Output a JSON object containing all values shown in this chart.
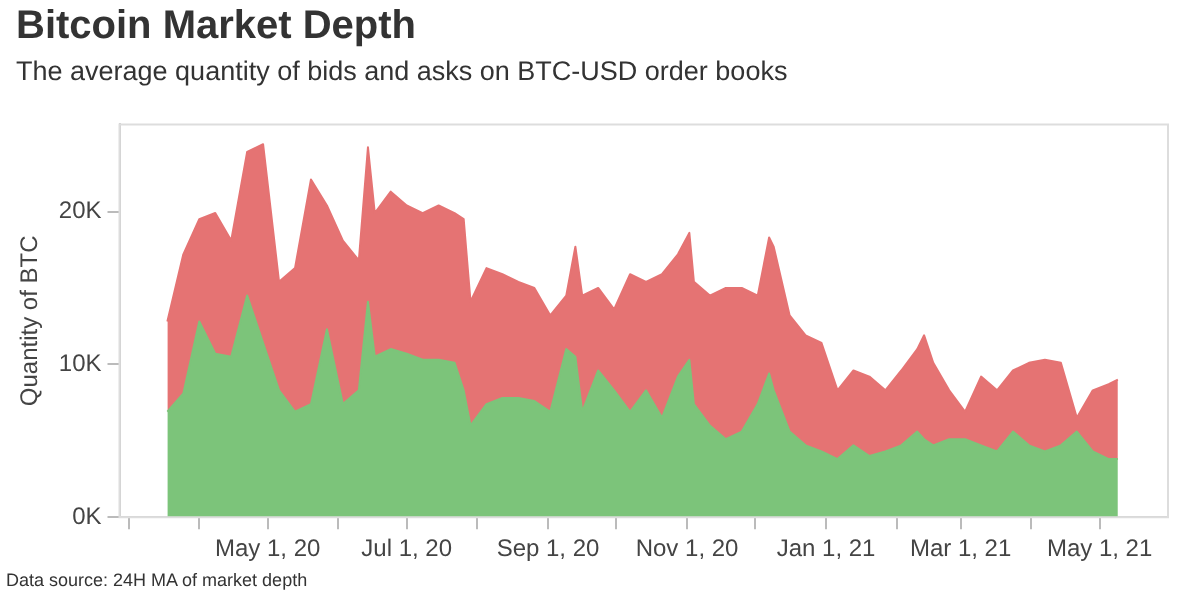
{
  "chart_data": {
    "type": "area",
    "stacked": true,
    "title": "Bitcoin Market Depth",
    "subtitle": "The average quantity of bids and asks on BTC-USD order books",
    "ylabel": "Quantity of BTC",
    "annotations": [
      "Data source: 24H MA of market depth"
    ],
    "x": [
      "2020-03-18",
      "2020-03-25",
      "2020-04-01",
      "2020-04-08",
      "2020-04-15",
      "2020-04-22",
      "2020-04-29",
      "2020-05-06",
      "2020-05-13",
      "2020-05-20",
      "2020-05-27",
      "2020-06-03",
      "2020-06-10",
      "2020-06-14",
      "2020-06-17",
      "2020-06-24",
      "2020-07-01",
      "2020-07-08",
      "2020-07-15",
      "2020-07-22",
      "2020-07-26",
      "2020-07-29",
      "2020-08-05",
      "2020-08-12",
      "2020-08-19",
      "2020-08-26",
      "2020-09-02",
      "2020-09-09",
      "2020-09-13",
      "2020-09-16",
      "2020-09-23",
      "2020-09-30",
      "2020-10-07",
      "2020-10-14",
      "2020-10-21",
      "2020-10-28",
      "2020-11-02",
      "2020-11-04",
      "2020-11-11",
      "2020-11-18",
      "2020-11-25",
      "2020-12-02",
      "2020-12-07",
      "2020-12-09",
      "2020-12-16",
      "2020-12-23",
      "2020-12-30",
      "2021-01-06",
      "2021-01-13",
      "2021-01-20",
      "2021-01-27",
      "2021-02-03",
      "2021-02-10",
      "2021-02-13",
      "2021-02-17",
      "2021-02-24",
      "2021-03-03",
      "2021-03-10",
      "2021-03-17",
      "2021-03-24",
      "2021-03-31",
      "2021-04-07",
      "2021-04-14",
      "2021-04-21",
      "2021-04-28",
      "2021-05-05",
      "2021-05-09"
    ],
    "series": [
      {
        "color": "#7cc47a",
        "values": [
          6900,
          8100,
          12800,
          10700,
          10500,
          14500,
          11400,
          8300,
          6900,
          7400,
          12300,
          7400,
          8300,
          14100,
          10500,
          11000,
          10700,
          10300,
          10300,
          10100,
          8300,
          6000,
          7400,
          7800,
          7800,
          7600,
          6900,
          11000,
          10500,
          6900,
          9600,
          8300,
          6900,
          8300,
          6500,
          9200,
          10300,
          7400,
          6000,
          5100,
          5600,
          7400,
          9400,
          8300,
          5600,
          4700,
          4300,
          3800,
          4700,
          4000,
          4300,
          4700,
          5600,
          5100,
          4700,
          5100,
          5100,
          4700,
          4300,
          5600,
          4700,
          4300,
          4700,
          5600,
          4300,
          3800,
          3800
        ]
      },
      {
        "color": "#e57373",
        "values": [
          5900,
          9100,
          6700,
          9200,
          7600,
          9400,
          13000,
          7100,
          9400,
          14700,
          8100,
          10700,
          8500,
          10100,
          9400,
          10300,
          9700,
          9600,
          10100,
          9800,
          11200,
          8100,
          8900,
          8100,
          7600,
          7400,
          6300,
          3500,
          7200,
          7600,
          5400,
          5300,
          9000,
          7100,
          9400,
          8000,
          8300,
          8000,
          8500,
          9900,
          9400,
          7100,
          8900,
          9400,
          7600,
          7200,
          7100,
          4500,
          4900,
          5200,
          4000,
          4900,
          5400,
          6800,
          5400,
          3200,
          1800,
          4500,
          4000,
          4000,
          5400,
          6000,
          5400,
          900,
          4000,
          4900,
          5200
        ]
      }
    ],
    "xlim": [
      "2020-02-26",
      "2021-05-31"
    ],
    "xticks": [
      {
        "value": "2020-03-01",
        "label": null
      },
      {
        "value": "2020-04-01",
        "label": null
      },
      {
        "value": "2020-05-01",
        "label": "May 1, 20"
      },
      {
        "value": "2020-06-01",
        "label": null
      },
      {
        "value": "2020-07-01",
        "label": "Jul 1, 20"
      },
      {
        "value": "2020-08-01",
        "label": null
      },
      {
        "value": "2020-09-01",
        "label": "Sep 1, 20"
      },
      {
        "value": "2020-10-01",
        "label": null
      },
      {
        "value": "2020-11-01",
        "label": "Nov 1, 20"
      },
      {
        "value": "2020-12-01",
        "label": null
      },
      {
        "value": "2021-01-01",
        "label": "Jan 1, 21"
      },
      {
        "value": "2021-02-01",
        "label": null
      },
      {
        "value": "2021-03-01",
        "label": "Mar 1, 21"
      },
      {
        "value": "2021-04-01",
        "label": null
      },
      {
        "value": "2021-05-01",
        "label": "May 1, 21"
      }
    ],
    "ylim": [
      0,
      25700
    ],
    "yticks": [
      {
        "value": 0,
        "label": "0K"
      },
      {
        "value": 10000,
        "label": "10K"
      },
      {
        "value": 20000,
        "label": "20K"
      }
    ],
    "grid": false,
    "legend": false
  }
}
